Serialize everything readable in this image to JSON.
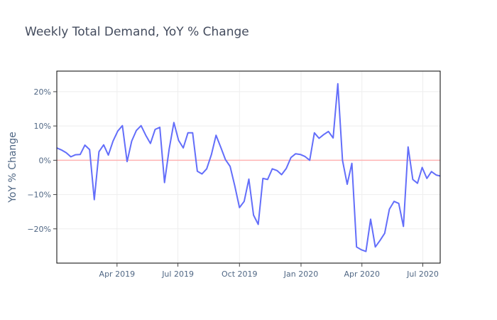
{
  "chart_data": {
    "type": "line",
    "title": "Weekly Total Demand, YoY % Change",
    "xlabel": "",
    "ylabel": "YoY % Change",
    "x_range": [
      "2019-01-01",
      "2020-07-27"
    ],
    "ylim": [
      -30,
      26
    ],
    "x_ticks": [
      {
        "date": "2019-04-01",
        "label": "Apr 2019"
      },
      {
        "date": "2019-07-01",
        "label": "Jul 2019"
      },
      {
        "date": "2019-10-01",
        "label": "Oct 2019"
      },
      {
        "date": "2020-01-01",
        "label": "Jan 2020"
      },
      {
        "date": "2020-04-01",
        "label": "Apr 2020"
      },
      {
        "date": "2020-07-01",
        "label": "Jul 2020"
      }
    ],
    "y_ticks": [
      {
        "value": 20,
        "label": "20%"
      },
      {
        "value": 10,
        "label": "10%"
      },
      {
        "value": 0,
        "label": "0%"
      },
      {
        "value": -10,
        "label": "−10%"
      },
      {
        "value": -20,
        "label": "−20%"
      }
    ],
    "grid": true,
    "reference_line": {
      "y": 0,
      "color": "#ffb3b3"
    },
    "series": [
      {
        "color": "#636efa",
        "points": [
          [
            "2019-01-01",
            3.6
          ],
          [
            "2019-01-08",
            3.0
          ],
          [
            "2019-01-15",
            2.2
          ],
          [
            "2019-01-22",
            1.0
          ],
          [
            "2019-01-29",
            1.6
          ],
          [
            "2019-02-05",
            1.7
          ],
          [
            "2019-02-12",
            4.4
          ],
          [
            "2019-02-19",
            3.1
          ],
          [
            "2019-02-26",
            -11.5
          ],
          [
            "2019-03-05",
            2.5
          ],
          [
            "2019-03-12",
            4.5
          ],
          [
            "2019-03-19",
            1.5
          ],
          [
            "2019-03-26",
            5.6
          ],
          [
            "2019-04-02",
            8.5
          ],
          [
            "2019-04-09",
            10.1
          ],
          [
            "2019-04-16",
            -0.4
          ],
          [
            "2019-04-23",
            5.6
          ],
          [
            "2019-04-30",
            8.7
          ],
          [
            "2019-05-07",
            10.1
          ],
          [
            "2019-05-14",
            7.3
          ],
          [
            "2019-05-21",
            4.9
          ],
          [
            "2019-05-28",
            9.0
          ],
          [
            "2019-06-04",
            9.6
          ],
          [
            "2019-06-11",
            -6.5
          ],
          [
            "2019-06-18",
            3.3
          ],
          [
            "2019-06-25",
            11.0
          ],
          [
            "2019-07-02",
            5.8
          ],
          [
            "2019-07-09",
            3.6
          ],
          [
            "2019-07-16",
            8.0
          ],
          [
            "2019-07-23",
            8.0
          ],
          [
            "2019-07-30",
            -3.2
          ],
          [
            "2019-08-06",
            -4.0
          ],
          [
            "2019-08-13",
            -2.5
          ],
          [
            "2019-08-20",
            1.6
          ],
          [
            "2019-08-27",
            7.3
          ],
          [
            "2019-09-03",
            3.8
          ],
          [
            "2019-09-10",
            0.2
          ],
          [
            "2019-09-17",
            -1.8
          ],
          [
            "2019-09-24",
            -7.5
          ],
          [
            "2019-10-01",
            -13.8
          ],
          [
            "2019-10-08",
            -12.0
          ],
          [
            "2019-10-15",
            -5.5
          ],
          [
            "2019-10-22",
            -16.0
          ],
          [
            "2019-10-29",
            -18.7
          ],
          [
            "2019-11-05",
            -5.3
          ],
          [
            "2019-11-12",
            -5.6
          ],
          [
            "2019-11-19",
            -2.5
          ],
          [
            "2019-11-26",
            -3.0
          ],
          [
            "2019-12-03",
            -4.2
          ],
          [
            "2019-12-10",
            -2.4
          ],
          [
            "2019-12-17",
            0.8
          ],
          [
            "2019-12-24",
            1.9
          ],
          [
            "2019-12-31",
            1.7
          ],
          [
            "2020-01-07",
            1.1
          ],
          [
            "2020-01-14",
            0.0
          ],
          [
            "2020-01-21",
            8.0
          ],
          [
            "2020-01-28",
            6.4
          ],
          [
            "2020-02-04",
            7.5
          ],
          [
            "2020-02-11",
            8.4
          ],
          [
            "2020-02-18",
            6.5
          ],
          [
            "2020-02-25",
            22.3
          ],
          [
            "2020-03-03",
            0.0
          ],
          [
            "2020-03-10",
            -7.0
          ],
          [
            "2020-03-17",
            -0.9
          ],
          [
            "2020-03-24",
            -25.3
          ],
          [
            "2020-03-31",
            -26.1
          ],
          [
            "2020-04-07",
            -26.6
          ],
          [
            "2020-04-14",
            -17.2
          ],
          [
            "2020-04-21",
            -25.3
          ],
          [
            "2020-04-28",
            -23.4
          ],
          [
            "2020-05-05",
            -21.3
          ],
          [
            "2020-05-12",
            -14.3
          ],
          [
            "2020-05-19",
            -12.0
          ],
          [
            "2020-05-26",
            -12.6
          ],
          [
            "2020-06-02",
            -19.3
          ],
          [
            "2020-06-09",
            3.9
          ],
          [
            "2020-06-16",
            -5.6
          ],
          [
            "2020-06-23",
            -6.7
          ],
          [
            "2020-06-30",
            -2.1
          ],
          [
            "2020-07-07",
            -5.3
          ],
          [
            "2020-07-14",
            -3.3
          ],
          [
            "2020-07-21",
            -4.3
          ],
          [
            "2020-07-27",
            -4.6
          ]
        ]
      }
    ]
  }
}
